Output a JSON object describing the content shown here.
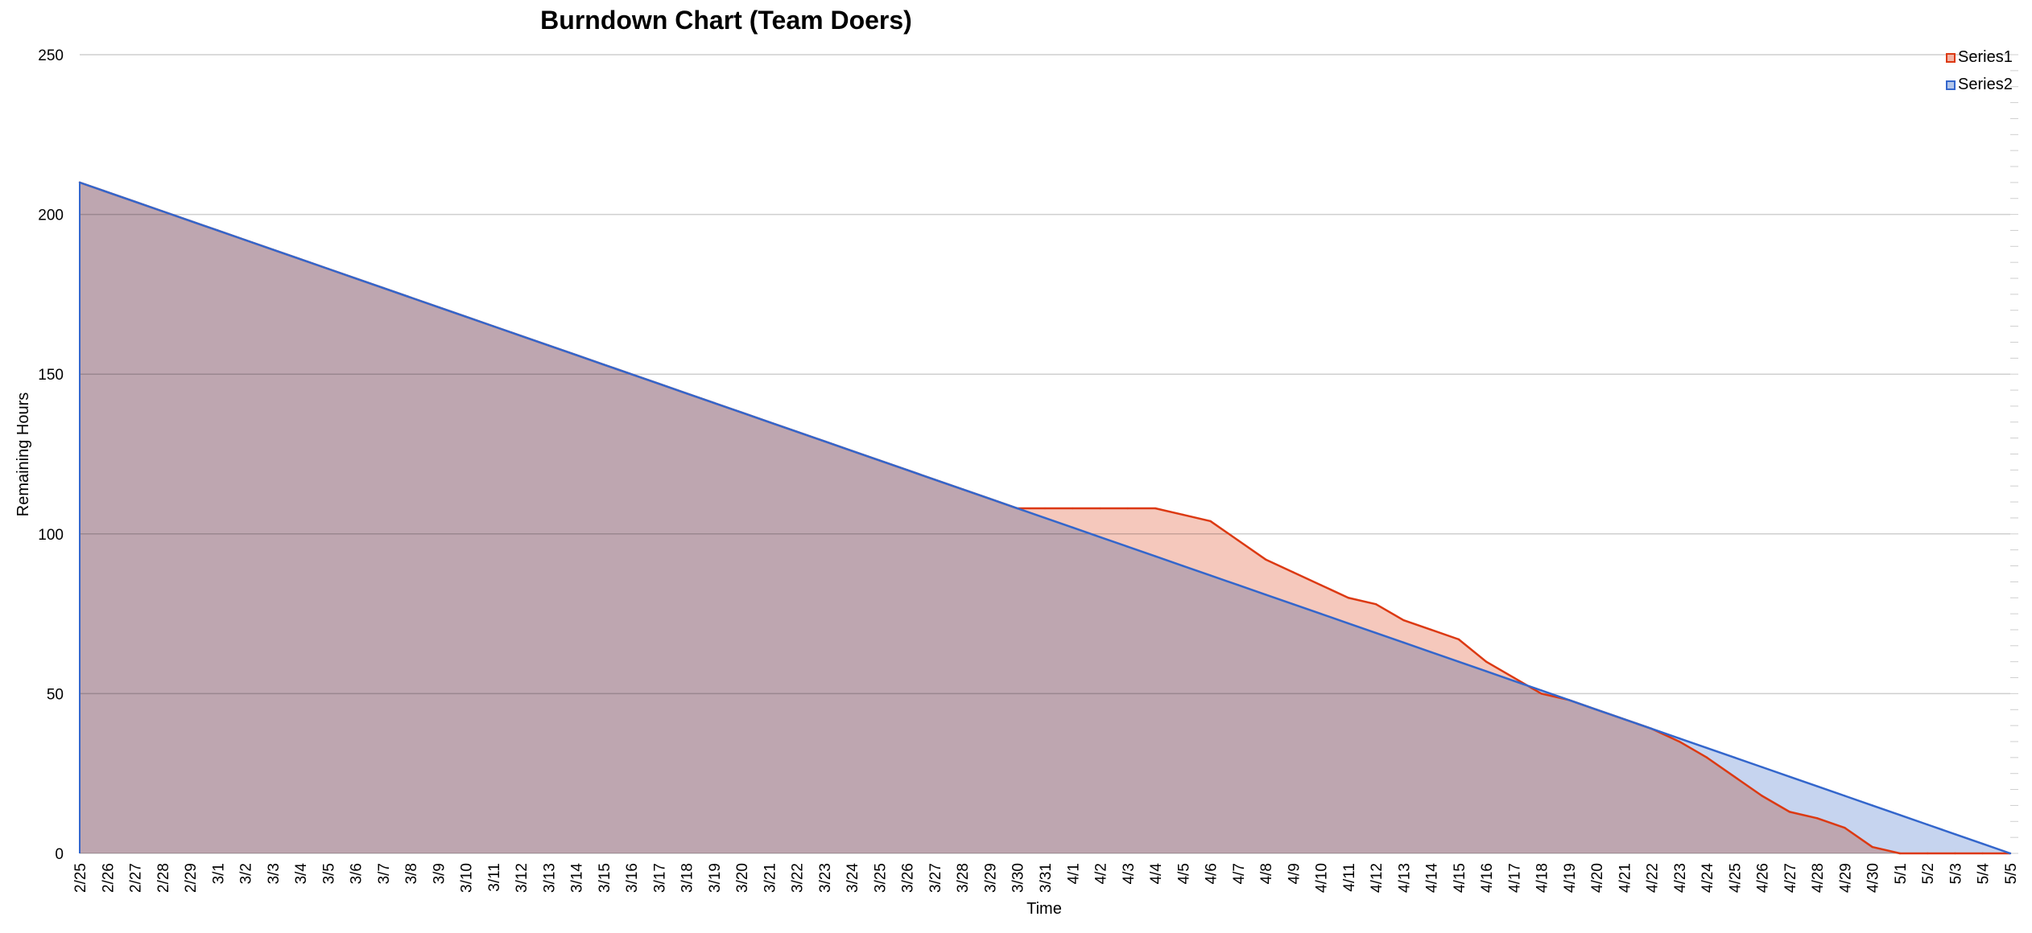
{
  "chart_data": {
    "type": "area",
    "title": "Burndown Chart (Team Doers)",
    "xlabel": "Time",
    "ylabel": "Remaining  Hours",
    "ylim": [
      0,
      250
    ],
    "yticks": [
      0,
      50,
      100,
      150,
      200,
      250
    ],
    "grid": true,
    "legend_position": "top-right",
    "categories": [
      "2/25",
      "2/26",
      "2/27",
      "2/28",
      "2/29",
      "3/1",
      "3/2",
      "3/3",
      "3/4",
      "3/5",
      "3/6",
      "3/7",
      "3/8",
      "3/9",
      "3/10",
      "3/11",
      "3/12",
      "3/13",
      "3/14",
      "3/15",
      "3/16",
      "3/17",
      "3/18",
      "3/19",
      "3/20",
      "3/21",
      "3/22",
      "3/23",
      "3/24",
      "3/25",
      "3/26",
      "3/27",
      "3/28",
      "3/29",
      "3/30",
      "3/31",
      "4/1",
      "4/2",
      "4/3",
      "4/4",
      "4/5",
      "4/6",
      "4/7",
      "4/8",
      "4/9",
      "4/10",
      "4/11",
      "4/12",
      "4/13",
      "4/14",
      "4/15",
      "4/16",
      "4/17",
      "4/18",
      "4/19",
      "4/20",
      "4/21",
      "4/22",
      "4/23",
      "4/24",
      "4/25",
      "4/26",
      "4/27",
      "4/28",
      "4/29",
      "4/30",
      "5/1",
      "5/2",
      "5/3",
      "5/4",
      "5/5"
    ],
    "series": [
      {
        "name": "Series1",
        "color": "#dc3912",
        "fill": "#f2b5a6",
        "values": [
          210,
          207,
          204,
          201,
          198,
          195,
          192,
          189,
          186,
          183,
          180,
          177,
          174,
          171,
          168,
          165,
          162,
          159,
          156,
          153,
          150,
          147,
          144,
          141,
          138,
          135,
          132,
          129,
          126,
          123,
          120,
          117,
          114,
          111,
          108,
          108,
          108,
          108,
          108,
          108,
          106,
          104,
          98,
          92,
          88,
          84,
          80,
          78,
          73,
          70,
          67,
          60,
          55,
          50,
          48,
          45,
          42,
          39,
          35,
          30,
          24,
          18,
          13,
          11,
          8,
          2,
          0,
          0,
          0,
          0,
          0
        ]
      },
      {
        "name": "Series2",
        "color": "#3366cc",
        "fill": "#b3c6ea",
        "values": [
          210,
          207,
          204,
          201,
          198,
          195,
          192,
          189,
          186,
          183,
          180,
          177,
          174,
          171,
          168,
          165,
          162,
          159,
          156,
          153,
          150,
          147,
          144,
          141,
          138,
          135,
          132,
          129,
          126,
          123,
          120,
          117,
          114,
          111,
          108,
          105,
          102,
          99,
          96,
          93,
          90,
          87,
          84,
          81,
          78,
          75,
          72,
          69,
          66,
          63,
          60,
          57,
          54,
          51,
          48,
          45,
          42,
          39,
          36,
          33,
          30,
          27,
          24,
          21,
          18,
          15,
          12,
          9,
          6,
          3,
          0
        ]
      }
    ]
  }
}
